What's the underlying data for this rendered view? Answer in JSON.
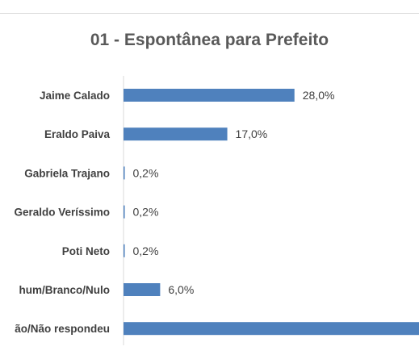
{
  "chart_data": {
    "type": "bar",
    "orientation": "horizontal",
    "title": "01 - Espontânea para Prefeito",
    "categories": [
      "Jaime Calado",
      "Eraldo Paiva",
      "Gabriela Trajano",
      "Geraldo Veríssimo",
      "Poti Neto",
      "hum/Branco/Nulo",
      "ão/Não respondeu"
    ],
    "values": [
      28.0,
      17.0,
      0.2,
      0.2,
      0.2,
      6.0,
      48.4
    ],
    "data_labels": [
      "28,0%",
      "17,0%",
      "0,2%",
      "0,2%",
      "0,2%",
      "6,0%",
      ""
    ],
    "xlabel": "",
    "ylabel": "",
    "xlim": [
      0,
      48.4
    ],
    "grid": false,
    "legend": "none",
    "bar_color": "#4f81bd"
  }
}
